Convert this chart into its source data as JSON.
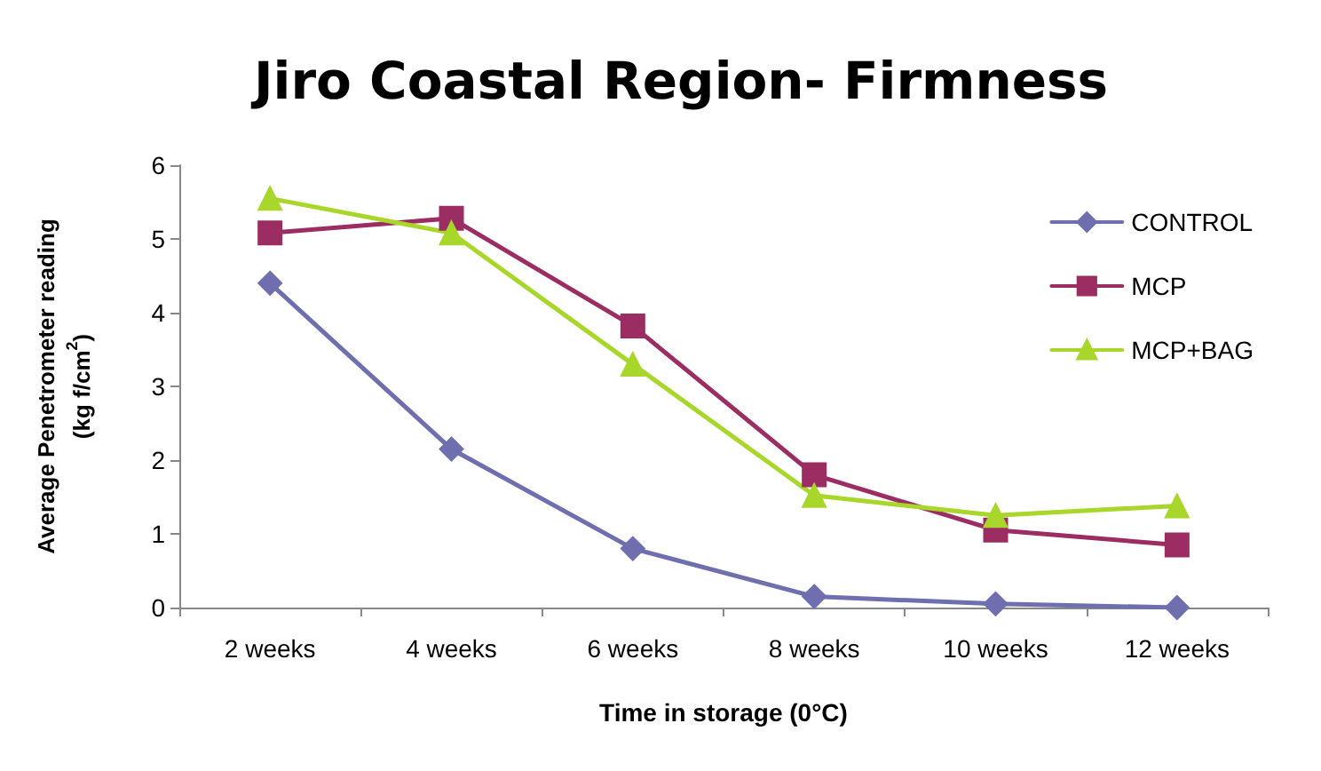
{
  "chart_data": {
    "type": "line",
    "title": "Jiro Coastal Region- Firmness",
    "xlabel": "Time in storage (0°C)",
    "ylabel": "Average Penetrometer reading\n(kg f/cm$^{2}$)",
    "categories": [
      "2 weeks",
      "4 weeks",
      "6 weeks",
      "8 weeks",
      "10 weeks",
      "12 weeks"
    ],
    "series": [
      {
        "name": "CONTROL",
        "color": "#6f6fb0",
        "marker": "diamond",
        "values": [
          4.4,
          2.15,
          0.8,
          0.15,
          0.05,
          0.0
        ]
      },
      {
        "name": "MCP",
        "color": "#9b2d62",
        "marker": "square",
        "values": [
          5.08,
          5.28,
          3.82,
          1.8,
          1.05,
          0.85
        ]
      },
      {
        "name": "MCP+BAG",
        "color": "#a8d62a",
        "marker": "triangle",
        "values": [
          5.55,
          5.08,
          3.3,
          1.52,
          1.25,
          1.38
        ]
      }
    ],
    "ylim": [
      0,
      6
    ],
    "yticks": [
      0,
      1,
      2,
      3,
      4,
      5,
      6
    ],
    "legend": "top right",
    "grid": false,
    "line_style": "solid"
  }
}
